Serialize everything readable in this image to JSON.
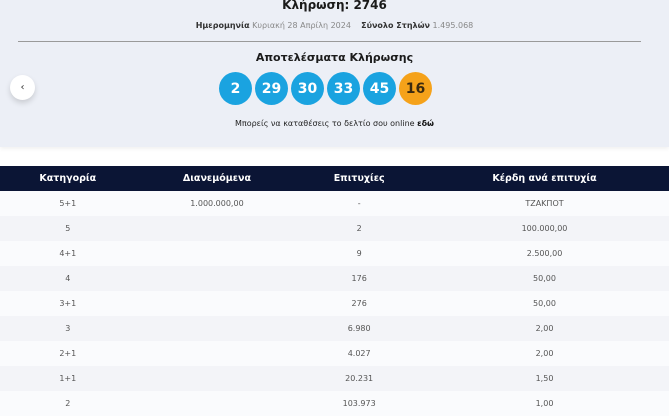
{
  "header": {
    "title": "Κλήρωση: 2746",
    "date_label": "Ημερομηνία",
    "date_value": "Κυριακή 28 Απρίλη 2024",
    "columns_label": "Σύνολο Στηλών",
    "columns_value": "1.495.068"
  },
  "results": {
    "heading": "Αποτελέσματα Κλήρωσης",
    "numbers": [
      "2",
      "29",
      "30",
      "33",
      "45"
    ],
    "bonus": "16",
    "link_text": "Μπορείς να καταθέσεις το δελτίο σου online",
    "link_label": "εδώ"
  },
  "colors": {
    "ball": "#1aa3e0",
    "bonus": "#f5a21a",
    "table_header": "#0b1535"
  },
  "nav": {
    "back_icon": "chevron-left"
  },
  "table": {
    "headers": [
      "Κατηγορία",
      "Διανεμόμενα",
      "Επιτυχίες",
      "Κέρδη ανά επιτυχία"
    ],
    "rows": [
      [
        "5+1",
        "1.000.000,00",
        "-",
        "ΤΖΑΚΠΟΤ"
      ],
      [
        "5",
        "",
        "2",
        "100.000,00"
      ],
      [
        "4+1",
        "",
        "9",
        "2.500,00"
      ],
      [
        "4",
        "",
        "176",
        "50,00"
      ],
      [
        "3+1",
        "",
        "276",
        "50,00"
      ],
      [
        "3",
        "",
        "6.980",
        "2,00"
      ],
      [
        "2+1",
        "",
        "4.027",
        "2,00"
      ],
      [
        "1+1",
        "",
        "20.231",
        "1,50"
      ],
      [
        "2",
        "",
        "103.973",
        "1,00"
      ]
    ]
  }
}
